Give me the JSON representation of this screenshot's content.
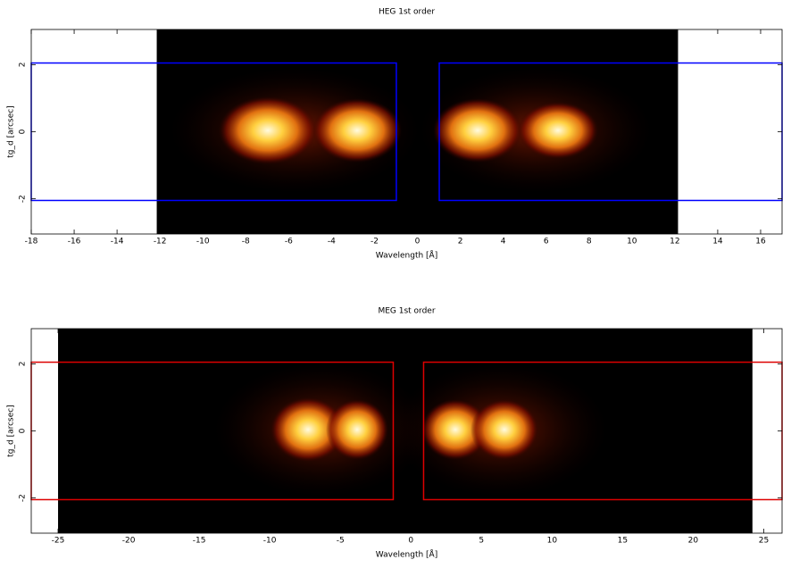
{
  "chart_data": [
    {
      "type": "image",
      "title": "HEG 1st order",
      "xlabel": "Wavelength [Å]",
      "ylabel": "tg_d [arcsec]",
      "xlim": [
        -18,
        17
      ],
      "ylim": [
        -3.05,
        3.05
      ],
      "xticks": [
        -18,
        -16,
        -14,
        -12,
        -10,
        -8,
        -6,
        -4,
        -2,
        0,
        2,
        4,
        6,
        8,
        10,
        12,
        14,
        16
      ],
      "yticks": [
        -2,
        0,
        2
      ],
      "image_xlim": [
        -12.15,
        12.15
      ],
      "region_color": "#0000ff",
      "regions": [
        {
          "xlim": [
            -18,
            -0.98
          ],
          "ylim": [
            -2.05,
            2.05
          ]
        },
        {
          "xlim": [
            1.02,
            17
          ],
          "ylim": [
            -2.05,
            2.05
          ]
        }
      ]
    },
    {
      "type": "image",
      "title": "MEG 1st order",
      "xlabel": "Wavelength [Å]",
      "ylabel": "tg_d [arcsec]",
      "xlim": [
        -26.9,
        26.3
      ],
      "ylim": [
        -3.05,
        3.05
      ],
      "xticks": [
        -25,
        -20,
        -15,
        -10,
        -5,
        0,
        5,
        10,
        15,
        20,
        25
      ],
      "yticks": [
        -2,
        0,
        2
      ],
      "image_xlim": [
        -25,
        24.2
      ],
      "region_color": "#dd0000",
      "regions": [
        {
          "xlim": [
            -26.9,
            -1.25
          ],
          "ylim": [
            -2.05,
            2.05
          ]
        },
        {
          "xlim": [
            0.9,
            26.3
          ],
          "ylim": [
            -2.05,
            2.05
          ]
        }
      ]
    }
  ]
}
